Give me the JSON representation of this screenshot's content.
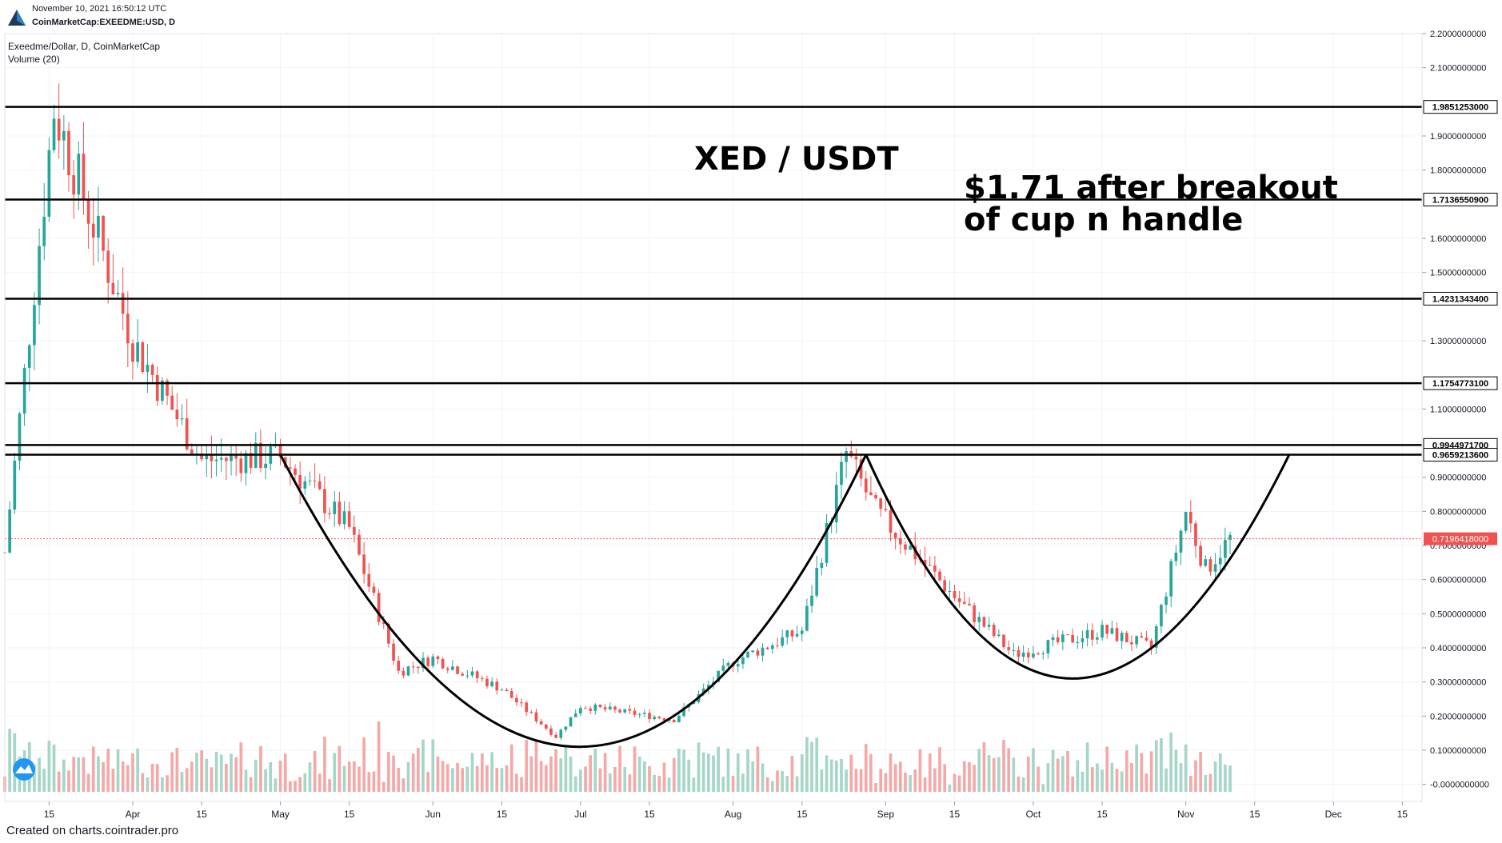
{
  "header": {
    "date": "November 10, 2021 16:50:12 UTC",
    "symbol": "CoinMarketCap:EXEEDME:USD, D"
  },
  "legend": {
    "title": "Exeedme/Dollar, D, CoinMarketCap",
    "volume": "Volume (20)"
  },
  "annotations": {
    "title": "XED / USDT",
    "target_line1": "$1.71 after breakout",
    "target_line2": "of cup n handle"
  },
  "footer": "Created on charts.cointrader.pro",
  "colors": {
    "up": "#26a69a",
    "down": "#ef5350",
    "up_volume": "#a5d6c7",
    "down_volume": "#f4a9a8",
    "line": "#000000",
    "current_price": "#ef5350"
  },
  "chart_data": {
    "type": "candlestick",
    "title": "Exeedme/Dollar, D, CoinMarketCap",
    "x_axis": {
      "ticks": [
        "15",
        "Apr",
        "15",
        "May",
        "15",
        "Jun",
        "15",
        "Jul",
        "15",
        "Aug",
        "15",
        "Sep",
        "15",
        "Oct",
        "15",
        "Nov",
        "15",
        "Dec",
        "15"
      ],
      "range": [
        "2021-03-06",
        "2021-12-19"
      ]
    },
    "y_axis": {
      "ticks": [
        "2.2000000000",
        "2.1000000000",
        "1.9000000000",
        "1.8000000000",
        "1.6000000000",
        "1.5000000000",
        "1.3000000000",
        "1.1000000000",
        "0.9000000000",
        "0.8000000000",
        "0.7000000000",
        "0.6000000000",
        "0.5000000000",
        "0.4000000000",
        "0.3000000000",
        "0.2000000000",
        "0.1000000000",
        "-0.0000000000"
      ],
      "range": [
        -0.05,
        2.2
      ]
    },
    "horizontal_levels": [
      {
        "value": 1.9851253,
        "label": "1.9851253000"
      },
      {
        "value": 1.7136551,
        "label": "1.7136550900"
      },
      {
        "value": 1.4231343,
        "label": "1.4231343400"
      },
      {
        "value": 1.1754773,
        "label": "1.1754773100"
      },
      {
        "value": 0.9944972,
        "label": "0.9944971700"
      },
      {
        "value": 0.9659214,
        "label": "0.9659213600"
      }
    ],
    "current_price": {
      "value": 0.7196418,
      "label": "0.7196418000"
    },
    "key_points": [
      {
        "date": "2021-03-06",
        "close": 0.68
      },
      {
        "date": "2021-03-16",
        "close": 1.98
      },
      {
        "date": "2021-04-01",
        "close": 1.3
      },
      {
        "date": "2021-04-15",
        "close": 0.95
      },
      {
        "date": "2021-05-01",
        "close": 0.96
      },
      {
        "date": "2021-05-15",
        "close": 0.75
      },
      {
        "date": "2021-05-25",
        "close": 0.33
      },
      {
        "date": "2021-06-01",
        "close": 0.37
      },
      {
        "date": "2021-06-15",
        "close": 0.28
      },
      {
        "date": "2021-06-26",
        "close": 0.14
      },
      {
        "date": "2021-07-01",
        "close": 0.23
      },
      {
        "date": "2021-07-20",
        "close": 0.19
      },
      {
        "date": "2021-08-01",
        "close": 0.36
      },
      {
        "date": "2021-08-15",
        "close": 0.45
      },
      {
        "date": "2021-08-24",
        "close": 0.97
      },
      {
        "date": "2021-08-30",
        "close": 0.8
      },
      {
        "date": "2021-09-15",
        "close": 0.55
      },
      {
        "date": "2021-09-27",
        "close": 0.38
      },
      {
        "date": "2021-10-15",
        "close": 0.45
      },
      {
        "date": "2021-10-25",
        "close": 0.4
      },
      {
        "date": "2021-11-01",
        "close": 0.8
      },
      {
        "date": "2021-11-05",
        "close": 0.63
      },
      {
        "date": "2021-11-10",
        "close": 0.72
      }
    ],
    "cup_curves": [
      {
        "from": "2021-05-01",
        "bottom": "2021-07-02",
        "to": "2021-08-28",
        "low": 0.11
      },
      {
        "from": "2021-08-28",
        "bottom": "2021-10-08",
        "to": "2021-11-22",
        "low": 0.31
      }
    ],
    "series": [
      {
        "name": "Volume (20)",
        "type": "bar"
      }
    ]
  }
}
